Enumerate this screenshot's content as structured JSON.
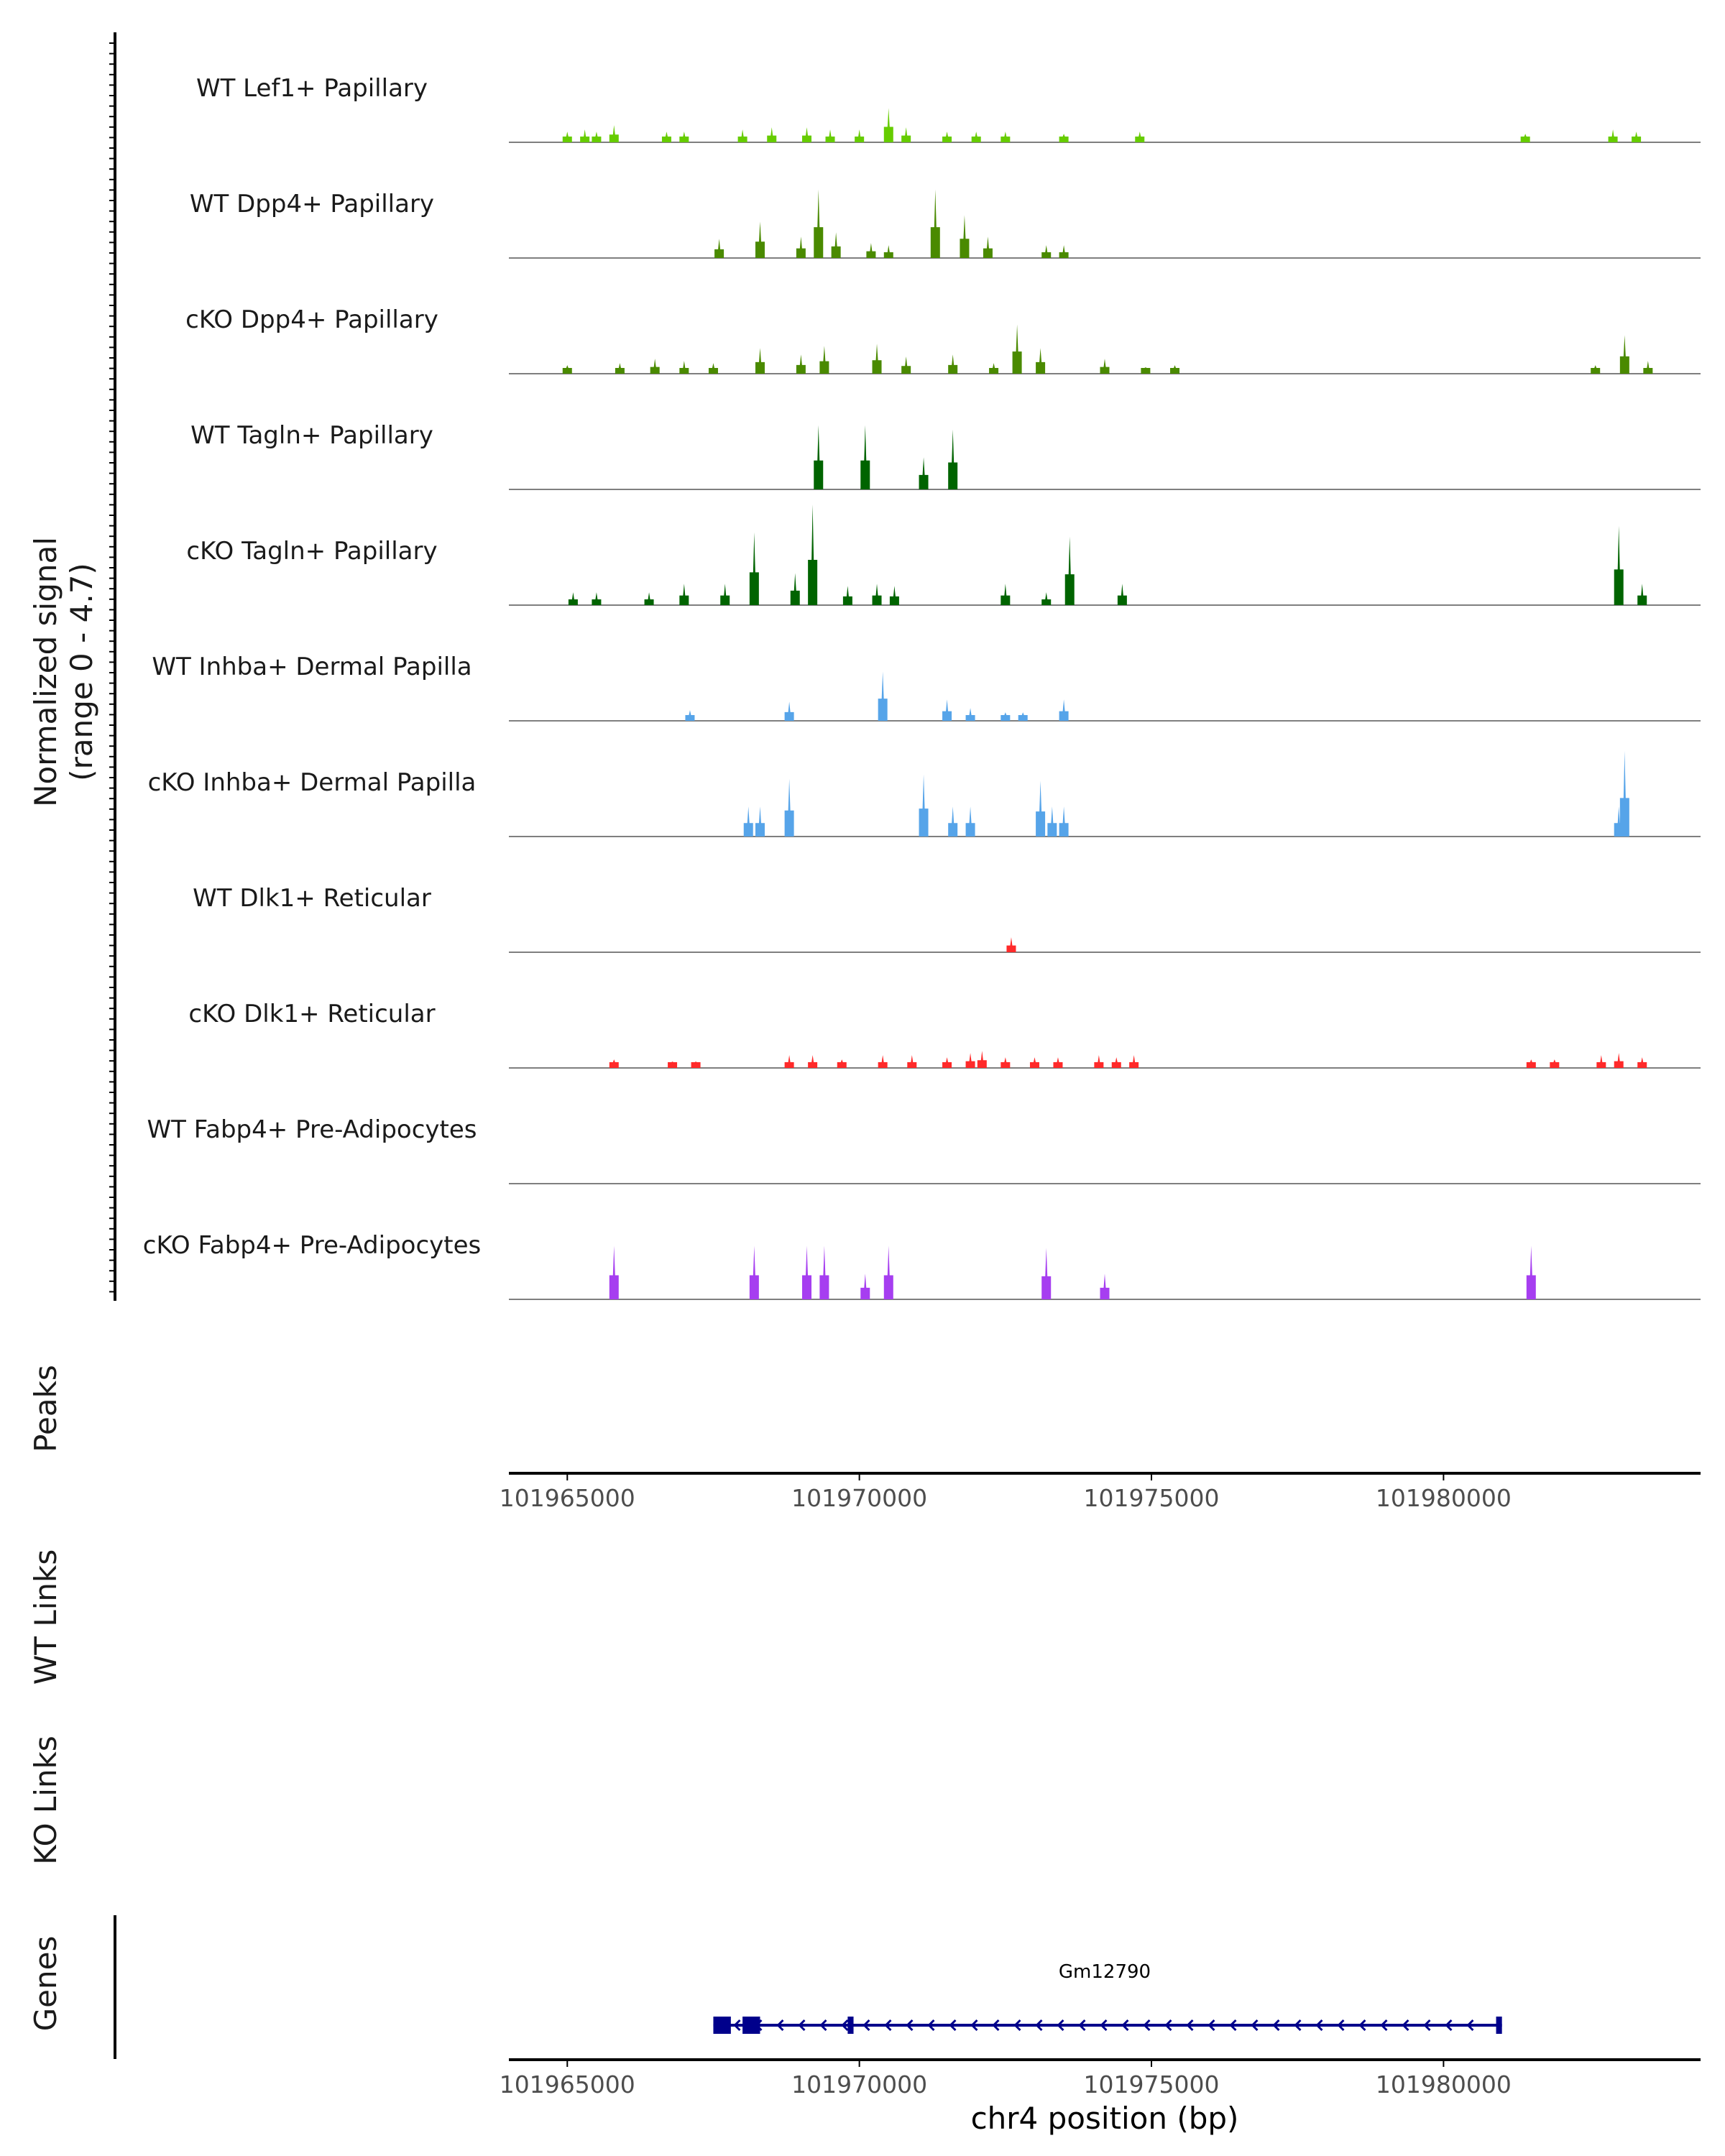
{
  "chart_data": {
    "type": "area",
    "title": "",
    "xlabel": "chr4 position (bp)",
    "y_axis_label_line1": "Normalized signal",
    "y_axis_label_line2": "(range 0 - 4.7)",
    "ylim": [
      0,
      4.7
    ],
    "xlim": [
      101964000,
      101984400
    ],
    "x_ticks": [
      101965000,
      101970000,
      101975000,
      101980000
    ],
    "x_tick_labels": [
      "101965000",
      "101970000",
      "101975000",
      "101980000"
    ],
    "panel_labels": {
      "peaks": "Peaks",
      "wt_links": "WT Links",
      "ko_links": "KO Links",
      "genes": "Genes"
    },
    "series": [
      {
        "name": "WT Lef1+ Papillary",
        "color": "#66cc00",
        "peaks": [
          [
            101965000,
            0.5
          ],
          [
            101965300,
            0.6
          ],
          [
            101965500,
            0.5
          ],
          [
            101965800,
            0.8
          ],
          [
            101966700,
            0.5
          ],
          [
            101967000,
            0.5
          ],
          [
            101968000,
            0.6
          ],
          [
            101968500,
            0.7
          ],
          [
            101969100,
            0.7
          ],
          [
            101969500,
            0.6
          ],
          [
            101970000,
            0.6
          ],
          [
            101970500,
            1.6
          ],
          [
            101970800,
            0.7
          ],
          [
            101971500,
            0.5
          ],
          [
            101972000,
            0.5
          ],
          [
            101972500,
            0.5
          ],
          [
            101973500,
            0.4
          ],
          [
            101974800,
            0.5
          ],
          [
            101981400,
            0.4
          ],
          [
            101982900,
            0.6
          ],
          [
            101983300,
            0.5
          ]
        ]
      },
      {
        "name": "WT Dpp4+ Papillary",
        "color": "#4a8a00",
        "peaks": [
          [
            101967600,
            0.9
          ],
          [
            101968300,
            1.7
          ],
          [
            101969000,
            1.0
          ],
          [
            101969300,
            3.2
          ],
          [
            101969600,
            1.2
          ],
          [
            101970200,
            0.7
          ],
          [
            101970500,
            0.6
          ],
          [
            101971300,
            3.2
          ],
          [
            101971800,
            2.0
          ],
          [
            101972200,
            1.0
          ],
          [
            101973200,
            0.6
          ],
          [
            101973500,
            0.6
          ]
        ]
      },
      {
        "name": "cKO Dpp4+ Papillary",
        "color": "#4a8a00",
        "peaks": [
          [
            101965000,
            0.4
          ],
          [
            101965900,
            0.5
          ],
          [
            101966500,
            0.7
          ],
          [
            101967000,
            0.6
          ],
          [
            101967500,
            0.5
          ],
          [
            101968300,
            1.2
          ],
          [
            101969000,
            0.9
          ],
          [
            101969400,
            1.3
          ],
          [
            101970300,
            1.4
          ],
          [
            101970800,
            0.8
          ],
          [
            101971600,
            0.9
          ],
          [
            101972300,
            0.5
          ],
          [
            101972700,
            2.3
          ],
          [
            101973100,
            1.2
          ],
          [
            101974200,
            0.7
          ],
          [
            101974900,
            0.3
          ],
          [
            101975400,
            0.4
          ],
          [
            101982600,
            0.4
          ],
          [
            101983100,
            1.8
          ],
          [
            101983500,
            0.6
          ]
        ]
      },
      {
        "name": "WT Tagln+ Papillary",
        "color": "#006400",
        "peaks": [
          [
            101969300,
            3.0
          ],
          [
            101970100,
            3.0
          ],
          [
            101971100,
            1.5
          ],
          [
            101971600,
            2.8
          ]
        ]
      },
      {
        "name": "cKO Tagln+ Papillary",
        "color": "#006400",
        "peaks": [
          [
            101965100,
            0.6
          ],
          [
            101965500,
            0.6
          ],
          [
            101966400,
            0.6
          ],
          [
            101967000,
            1.0
          ],
          [
            101967700,
            1.0
          ],
          [
            101968200,
            3.4
          ],
          [
            101968900,
            1.5
          ],
          [
            101969200,
            4.7
          ],
          [
            101969800,
            0.9
          ],
          [
            101970300,
            1.0
          ],
          [
            101970600,
            0.9
          ],
          [
            101972500,
            1.0
          ],
          [
            101973200,
            0.6
          ],
          [
            101973600,
            3.2
          ],
          [
            101974500,
            1.0
          ],
          [
            101983000,
            3.7
          ],
          [
            101983400,
            1.0
          ]
        ]
      },
      {
        "name": "WT Inhba+ Dermal Papilla",
        "color": "#56a4e9",
        "peaks": [
          [
            101967100,
            0.5
          ],
          [
            101968800,
            0.9
          ],
          [
            101970400,
            2.3
          ],
          [
            101971500,
            1.0
          ],
          [
            101971900,
            0.6
          ],
          [
            101972500,
            0.4
          ],
          [
            101972800,
            0.4
          ],
          [
            101973500,
            1.0
          ]
        ]
      },
      {
        "name": "cKO Inhba+ Dermal Papilla",
        "color": "#56a4e9",
        "peaks": [
          [
            101968100,
            1.4
          ],
          [
            101968300,
            1.4
          ],
          [
            101968800,
            2.7
          ],
          [
            101971100,
            2.9
          ],
          [
            101971600,
            1.4
          ],
          [
            101971900,
            1.4
          ],
          [
            101973100,
            2.6
          ],
          [
            101973300,
            1.4
          ],
          [
            101973500,
            1.4
          ],
          [
            101983000,
            1.4
          ],
          [
            101983100,
            4.0
          ]
        ]
      },
      {
        "name": "WT Dlk1+ Reticular",
        "color": "#ff2a2a",
        "peaks": [
          [
            101972600,
            0.7
          ]
        ]
      },
      {
        "name": "cKO Dlk1+ Reticular",
        "color": "#ff2a2a",
        "peaks": [
          [
            101965800,
            0.4
          ],
          [
            101966800,
            0.3
          ],
          [
            101967200,
            0.3
          ],
          [
            101968800,
            0.6
          ],
          [
            101969200,
            0.6
          ],
          [
            101969700,
            0.4
          ],
          [
            101970400,
            0.6
          ],
          [
            101970900,
            0.6
          ],
          [
            101971500,
            0.5
          ],
          [
            101971900,
            0.7
          ],
          [
            101972100,
            0.8
          ],
          [
            101972500,
            0.5
          ],
          [
            101973000,
            0.5
          ],
          [
            101973400,
            0.5
          ],
          [
            101974100,
            0.6
          ],
          [
            101974400,
            0.5
          ],
          [
            101974700,
            0.6
          ],
          [
            101981500,
            0.4
          ],
          [
            101981900,
            0.4
          ],
          [
            101982700,
            0.6
          ],
          [
            101983000,
            0.7
          ],
          [
            101983400,
            0.5
          ]
        ]
      },
      {
        "name": "WT Fabp4+ Pre-Adipocytes",
        "color": "#a63ef0",
        "peaks": []
      },
      {
        "name": "cKO Fabp4+ Pre-Adipocytes",
        "color": "#a63ef0",
        "peaks": [
          [
            101965800,
            2.5
          ],
          [
            101968200,
            2.5
          ],
          [
            101969100,
            2.5
          ],
          [
            101969400,
            2.5
          ],
          [
            101970100,
            1.2
          ],
          [
            101970500,
            2.5
          ],
          [
            101973200,
            2.4
          ],
          [
            101974200,
            1.2
          ],
          [
            101981500,
            2.5
          ]
        ]
      }
    ],
    "gene": {
      "name": "Gm12790",
      "strand": "-",
      "start": 101967500,
      "end": 101981000,
      "exons": [
        [
          101967500,
          101967800
        ],
        [
          101968000,
          101968300
        ],
        [
          101969800,
          101969900
        ],
        [
          101980900,
          101981000
        ]
      ]
    }
  }
}
